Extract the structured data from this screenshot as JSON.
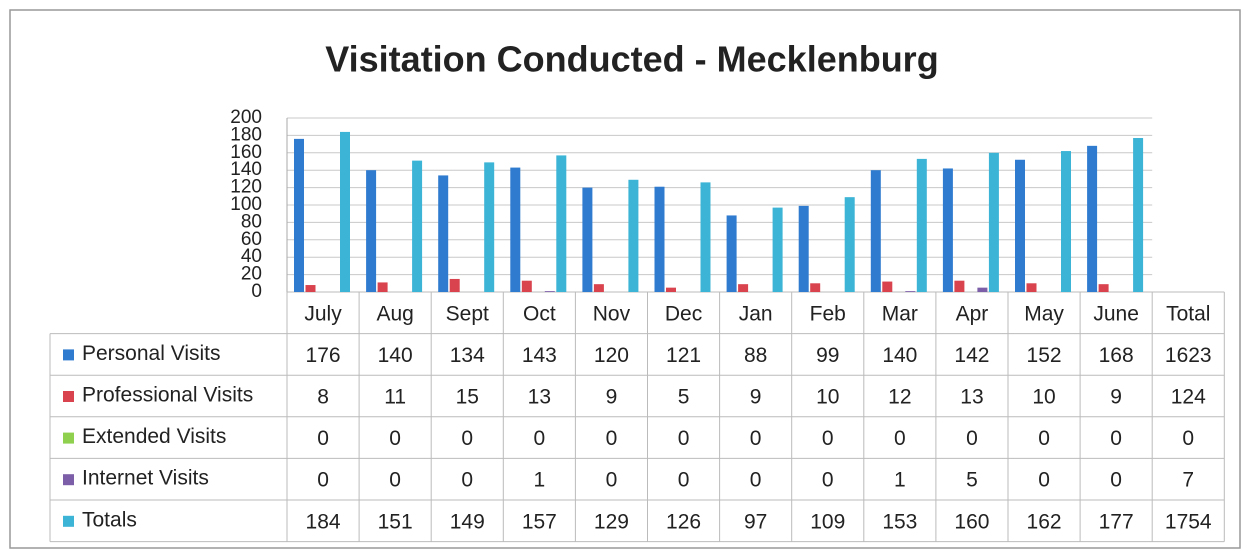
{
  "chart_data": {
    "type": "bar",
    "title": "Visitation Conducted - Mecklenburg",
    "categories": [
      "July",
      "Aug",
      "Sept",
      "Oct",
      "Nov",
      "Dec",
      "Jan",
      "Feb",
      "Mar",
      "Apr",
      "May",
      "June"
    ],
    "total_label": "Total",
    "series": [
      {
        "name": "Personal Visits",
        "color": "#2e7bcf",
        "values": [
          176,
          140,
          134,
          143,
          120,
          121,
          88,
          99,
          140,
          142,
          152,
          168
        ],
        "total": 1623
      },
      {
        "name": "Professional Visits",
        "color": "#d9434e",
        "values": [
          8,
          11,
          15,
          13,
          9,
          5,
          9,
          10,
          12,
          13,
          10,
          9
        ],
        "total": 124
      },
      {
        "name": "Extended Visits",
        "color": "#8fd14f",
        "values": [
          0,
          0,
          0,
          0,
          0,
          0,
          0,
          0,
          0,
          0,
          0,
          0
        ],
        "total": 0
      },
      {
        "name": "Internet Visits",
        "color": "#7b5ea7",
        "values": [
          0,
          0,
          0,
          1,
          0,
          0,
          0,
          0,
          1,
          5,
          0,
          0
        ],
        "total": 7
      },
      {
        "name": "Totals",
        "color": "#3cb4d6",
        "values": [
          184,
          151,
          149,
          157,
          129,
          126,
          97,
          109,
          153,
          160,
          162,
          177
        ],
        "total": 1754
      }
    ],
    "ylim": [
      0,
      200
    ],
    "yticks": [
      0,
      20,
      40,
      60,
      80,
      100,
      120,
      140,
      160,
      180,
      200
    ],
    "grid": true
  }
}
